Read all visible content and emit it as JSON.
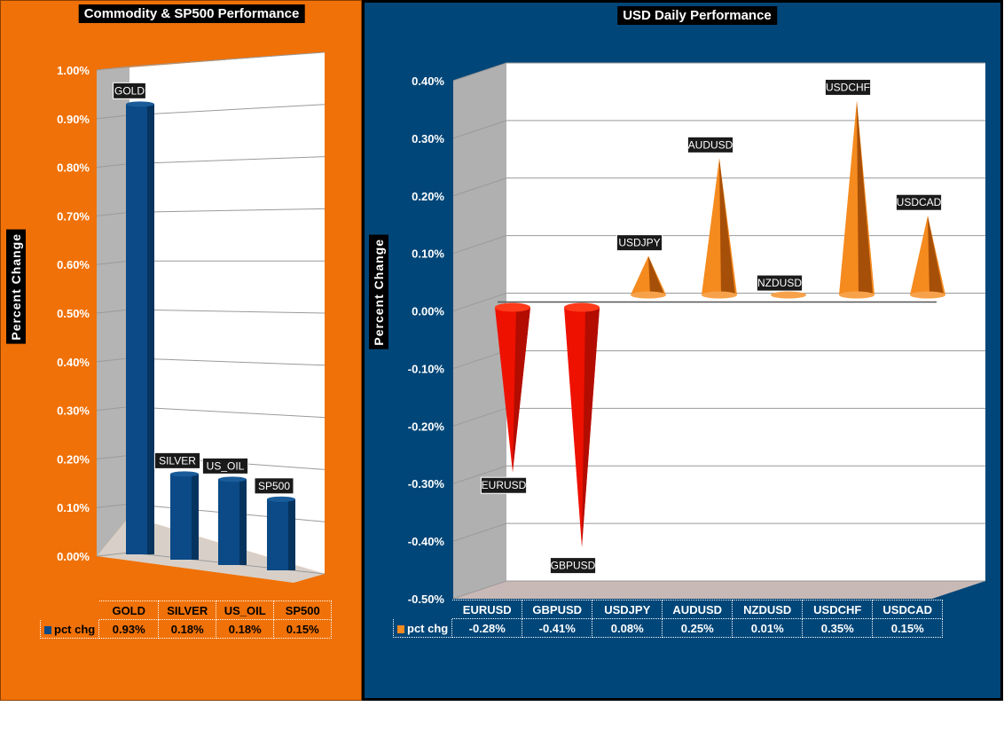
{
  "colors": {
    "left_bg": "#f07107",
    "right_bg": "#014678",
    "bar": "#0b4a86",
    "neg_cone": "#ee1100",
    "pos_cone": "#f58a1e"
  },
  "left": {
    "title": "Commodity & SP500 Performance",
    "ylabel": "Percent Change",
    "table_series": "pct chg",
    "table_values": [
      "0.93%",
      "0.18%",
      "0.18%",
      "0.15%"
    ]
  },
  "right": {
    "title": "USD Daily Performance",
    "ylabel": "Percent Change",
    "table_series": "pct chg",
    "table_values": [
      "-0.28%",
      "-0.41%",
      "0.08%",
      "0.25%",
      "0.01%",
      "0.35%",
      "0.15%"
    ]
  },
  "chart_data": [
    {
      "type": "bar",
      "title": "Commodity & SP500 Performance",
      "ylabel": "Percent Change",
      "categories": [
        "GOLD",
        "SILVER",
        "US_OIL",
        "SP500"
      ],
      "series": [
        {
          "name": "pct chg",
          "values": [
            0.93,
            0.18,
            0.18,
            0.15
          ]
        }
      ],
      "ylim": [
        0,
        1.0
      ],
      "yticks": [
        "0.00%",
        "0.10%",
        "0.20%",
        "0.30%",
        "0.40%",
        "0.50%",
        "0.60%",
        "0.70%",
        "0.80%",
        "0.90%",
        "1.00%"
      ],
      "grid": true
    },
    {
      "type": "bar",
      "title": "USD Daily Performance",
      "ylabel": "Percent Change",
      "categories": [
        "EURUSD",
        "GBPUSD",
        "USDJPY",
        "AUDUSD",
        "NZDUSD",
        "USDCHF",
        "USDCAD"
      ],
      "series": [
        {
          "name": "pct chg",
          "values": [
            -0.28,
            -0.41,
            0.08,
            0.25,
            0.01,
            0.35,
            0.15
          ]
        }
      ],
      "ylim": [
        -0.5,
        0.4
      ],
      "yticks": [
        "-0.50%",
        "-0.40%",
        "-0.30%",
        "-0.20%",
        "-0.10%",
        "0.00%",
        "0.10%",
        "0.20%",
        "0.30%",
        "0.40%"
      ],
      "grid": true
    }
  ]
}
